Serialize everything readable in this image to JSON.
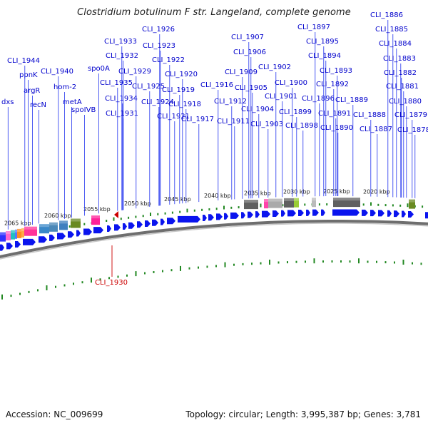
{
  "title": "Clostridium botulinum F str. Langeland, complete genome",
  "footer": {
    "accession": "Accession: NC_009699",
    "summary": "Topology: circular; Length: 3,995,387 bp; Genes: 3,781"
  },
  "colors": {
    "label_blue": "#0000cc",
    "line_blue": "#2233ee",
    "highlight_red": "#cc0000",
    "tick_green": "#228822",
    "gene_blue": "#0a14ee",
    "axis_grey": "#888888"
  },
  "scale_labels": [
    "2065 kbp",
    "2060 kbp",
    "2055 kbp",
    "2050 kbp",
    "2045 kbp",
    "2040 kbp",
    "2035 kbp",
    "2030 kbp",
    "2025 kbp",
    "2020 kbp"
  ],
  "gene_labels": [
    "dxs",
    "ppnK",
    "argR",
    "recN",
    "CLI_1944",
    "CLI_1940",
    "hom-2",
    "metA",
    "spoIVB",
    "spo0A",
    "CLI_1935",
    "CLI_1934",
    "CLI_1933",
    "CLI_1932",
    "CLI_1931",
    "CLI_1929",
    "CLI_1926",
    "CLI_1925",
    "CLI_1924",
    "CLI_1923",
    "CLI_1922",
    "CLI_1921",
    "CLI_1920",
    "CLI_1919",
    "CLI_1918",
    "CLI_1917",
    "CLI_1916",
    "CLI_1912",
    "CLI_1911",
    "CLI_1909",
    "CLI_1907",
    "CLI_1906",
    "CLI_1905",
    "CLI_1904",
    "CLI_1903",
    "CLI_1902",
    "CLI_1901",
    "CLI_1900",
    "CLI_1899",
    "CLI_1898",
    "CLI_1897",
    "CLI_1896",
    "CLI_1895",
    "CLI_1894",
    "CLI_1893",
    "CLI_1892",
    "CLI_1891",
    "CLI_1890",
    "CLI_1889",
    "CLI_1888",
    "CLI_1887",
    "CLI_1886",
    "CLI_1885",
    "CLI_1884",
    "CLI_1883",
    "CLI_1882",
    "CLI_1881",
    "CLI_1880",
    "CLI_1879",
    "CLI_1878"
  ],
  "highlight_label": "CLI_1930"
}
